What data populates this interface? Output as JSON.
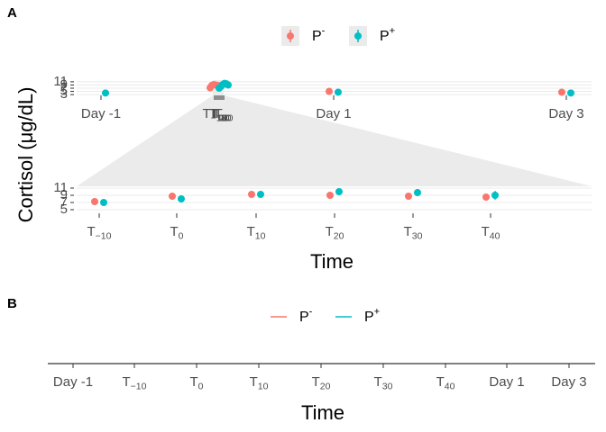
{
  "chart_data": [
    {
      "type": "pointrange",
      "panel": "A",
      "y_label": "Cortisol (μg/dL)",
      "x_label": "Time",
      "categories": [
        "Day -1",
        "T−10",
        "T0",
        "T10",
        "T20",
        "T30",
        "T40",
        "Day 1",
        "Day 3"
      ],
      "ylim": [
        2.5,
        11.5
      ],
      "yticks": [
        3,
        5,
        7,
        9,
        11
      ],
      "zoom_ylim": [
        4,
        11.5
      ],
      "zoom_yticks": [
        5,
        7,
        9,
        11
      ],
      "grid": true,
      "series": [
        {
          "name": "P-",
          "color": "#F8766D",
          "values": [
            null,
            7.25,
            8.75,
            9.25,
            9,
            8.75,
            8.5,
            5,
            4.5
          ],
          "errors": [
            null,
            0.5,
            0.6,
            0.6,
            0.6,
            0.6,
            0.6,
            0.6,
            0.5
          ]
        },
        {
          "name": "P+",
          "color": "#00BFC4",
          "values": [
            4,
            7,
            8,
            9.25,
            10,
            9.75,
            9,
            4.5,
            4
          ],
          "errors": [
            0.5,
            0.6,
            0.5,
            0.7,
            0.7,
            1,
            1.2,
            0.6,
            0.6
          ]
        }
      ]
    },
    {
      "type": "line",
      "panel": "B",
      "x_label": "Time",
      "categories": [
        "Day -1",
        "T−10",
        "T0",
        "T10",
        "T20",
        "T30",
        "T40",
        "Day 1",
        "Day 3"
      ],
      "series": [
        {
          "name": "P-",
          "color": "#F8766D"
        },
        {
          "name": "P+",
          "color": "#00BFC4"
        }
      ]
    }
  ]
}
